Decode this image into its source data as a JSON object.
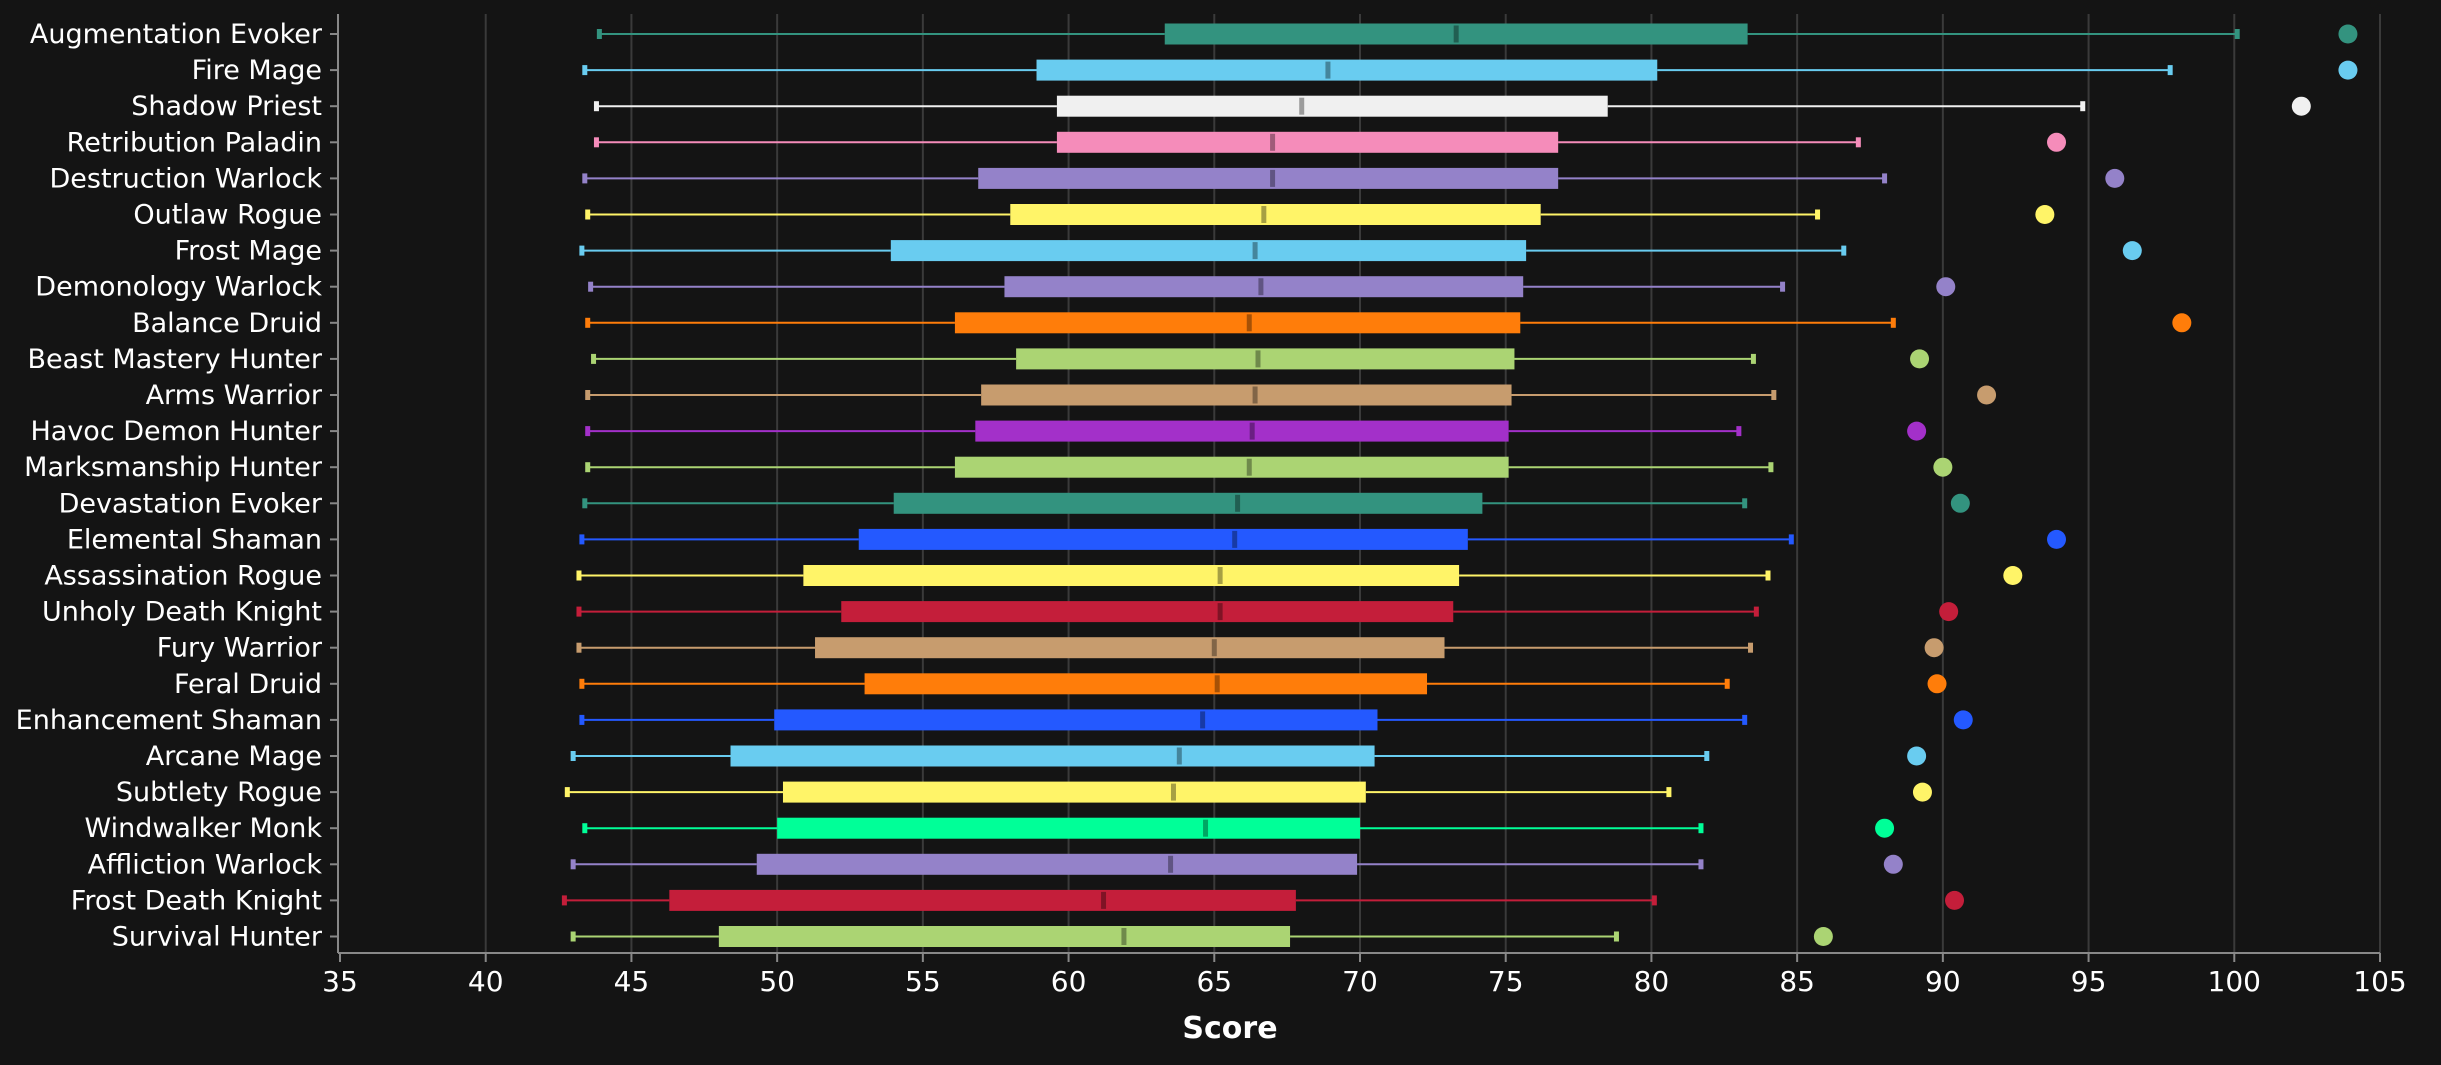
{
  "chart_data": {
    "type": "box",
    "xlabel": "Score",
    "xlim": [
      35,
      105
    ],
    "xticks": [
      35,
      40,
      45,
      50,
      55,
      60,
      65,
      70,
      75,
      80,
      85,
      90,
      95,
      100,
      105
    ],
    "grid": "vertical",
    "background": "#141414",
    "series": [
      {
        "name": "Augmentation Evoker",
        "color": "#33937f",
        "whisker_low": 43.9,
        "q1": 63.3,
        "median": 73.3,
        "q3": 83.3,
        "whisker_high": 100.1,
        "outlier": 103.9
      },
      {
        "name": "Fire Mage",
        "color": "#69ccf0",
        "whisker_low": 43.4,
        "q1": 58.9,
        "median": 68.9,
        "q3": 80.2,
        "whisker_high": 97.8,
        "outlier": 103.9
      },
      {
        "name": "Shadow Priest",
        "color": "#f0f0f0",
        "whisker_low": 43.8,
        "q1": 59.6,
        "median": 68.0,
        "q3": 78.5,
        "whisker_high": 94.8,
        "outlier": 102.3
      },
      {
        "name": "Retribution Paladin",
        "color": "#f58cba",
        "whisker_low": 43.8,
        "q1": 59.6,
        "median": 67.0,
        "q3": 76.8,
        "whisker_high": 87.1,
        "outlier": 93.9
      },
      {
        "name": "Destruction Warlock",
        "color": "#9482c9",
        "whisker_low": 43.4,
        "q1": 56.9,
        "median": 67.0,
        "q3": 76.8,
        "whisker_high": 88.0,
        "outlier": 95.9
      },
      {
        "name": "Outlaw Rogue",
        "color": "#fff468",
        "whisker_low": 43.5,
        "q1": 58.0,
        "median": 66.7,
        "q3": 76.2,
        "whisker_high": 85.7,
        "outlier": 93.5
      },
      {
        "name": "Frost Mage",
        "color": "#69ccf0",
        "whisker_low": 43.3,
        "q1": 53.9,
        "median": 66.4,
        "q3": 75.7,
        "whisker_high": 86.6,
        "outlier": 96.5
      },
      {
        "name": "Demonology Warlock",
        "color": "#9482c9",
        "whisker_low": 43.6,
        "q1": 57.8,
        "median": 66.6,
        "q3": 75.6,
        "whisker_high": 84.5,
        "outlier": 90.1
      },
      {
        "name": "Balance Druid",
        "color": "#ff7d0a",
        "whisker_low": 43.5,
        "q1": 56.1,
        "median": 66.2,
        "q3": 75.5,
        "whisker_high": 88.3,
        "outlier": 98.2
      },
      {
        "name": "Beast Mastery Hunter",
        "color": "#abd473",
        "whisker_low": 43.7,
        "q1": 58.2,
        "median": 66.5,
        "q3": 75.3,
        "whisker_high": 83.5,
        "outlier": 89.2
      },
      {
        "name": "Arms Warrior",
        "color": "#c79c6e",
        "whisker_low": 43.5,
        "q1": 57.0,
        "median": 66.4,
        "q3": 75.2,
        "whisker_high": 84.2,
        "outlier": 91.5
      },
      {
        "name": "Havoc Demon Hunter",
        "color": "#a330c9",
        "whisker_low": 43.5,
        "q1": 56.8,
        "median": 66.3,
        "q3": 75.1,
        "whisker_high": 83.0,
        "outlier": 89.1
      },
      {
        "name": "Marksmanship Hunter",
        "color": "#abd473",
        "whisker_low": 43.5,
        "q1": 56.1,
        "median": 66.2,
        "q3": 75.1,
        "whisker_high": 84.1,
        "outlier": 90.0
      },
      {
        "name": "Devastation Evoker",
        "color": "#33937f",
        "whisker_low": 43.4,
        "q1": 54.0,
        "median": 65.8,
        "q3": 74.2,
        "whisker_high": 83.2,
        "outlier": 90.6
      },
      {
        "name": "Elemental Shaman",
        "color": "#2459ff",
        "whisker_low": 43.3,
        "q1": 52.8,
        "median": 65.7,
        "q3": 73.7,
        "whisker_high": 84.8,
        "outlier": 93.9
      },
      {
        "name": "Assassination Rogue",
        "color": "#fff468",
        "whisker_low": 43.2,
        "q1": 50.9,
        "median": 65.2,
        "q3": 73.4,
        "whisker_high": 84.0,
        "outlier": 92.4
      },
      {
        "name": "Unholy Death Knight",
        "color": "#c41e3a",
        "whisker_low": 43.2,
        "q1": 52.2,
        "median": 65.2,
        "q3": 73.2,
        "whisker_high": 83.6,
        "outlier": 90.2
      },
      {
        "name": "Fury Warrior",
        "color": "#c79c6e",
        "whisker_low": 43.2,
        "q1": 51.3,
        "median": 65.0,
        "q3": 72.9,
        "whisker_high": 83.4,
        "outlier": 89.7
      },
      {
        "name": "Feral Druid",
        "color": "#ff7d0a",
        "whisker_low": 43.3,
        "q1": 53.0,
        "median": 65.1,
        "q3": 72.3,
        "whisker_high": 82.6,
        "outlier": 89.8
      },
      {
        "name": "Enhancement Shaman",
        "color": "#2459ff",
        "whisker_low": 43.3,
        "q1": 49.9,
        "median": 64.6,
        "q3": 70.6,
        "whisker_high": 83.2,
        "outlier": 90.7
      },
      {
        "name": "Arcane Mage",
        "color": "#69ccf0",
        "whisker_low": 43.0,
        "q1": 48.4,
        "median": 63.8,
        "q3": 70.5,
        "whisker_high": 81.9,
        "outlier": 89.1
      },
      {
        "name": "Subtlety Rogue",
        "color": "#fff468",
        "whisker_low": 42.8,
        "q1": 50.2,
        "median": 63.6,
        "q3": 70.2,
        "whisker_high": 80.6,
        "outlier": 89.3
      },
      {
        "name": "Windwalker Monk",
        "color": "#00ff98",
        "whisker_low": 43.4,
        "q1": 50.0,
        "median": 64.7,
        "q3": 70.0,
        "whisker_high": 81.7,
        "outlier": 88.0
      },
      {
        "name": "Affliction Warlock",
        "color": "#9482c9",
        "whisker_low": 43.0,
        "q1": 49.3,
        "median": 63.5,
        "q3": 69.9,
        "whisker_high": 81.7,
        "outlier": 88.3
      },
      {
        "name": "Frost Death Knight",
        "color": "#c41e3a",
        "whisker_low": 42.7,
        "q1": 46.3,
        "median": 61.2,
        "q3": 67.8,
        "whisker_high": 80.1,
        "outlier": 90.4
      },
      {
        "name": "Survival Hunter",
        "color": "#abd473",
        "whisker_low": 43.0,
        "q1": 48.0,
        "median": 61.9,
        "q3": 67.6,
        "whisker_high": 78.8,
        "outlier": 85.9
      }
    ]
  }
}
